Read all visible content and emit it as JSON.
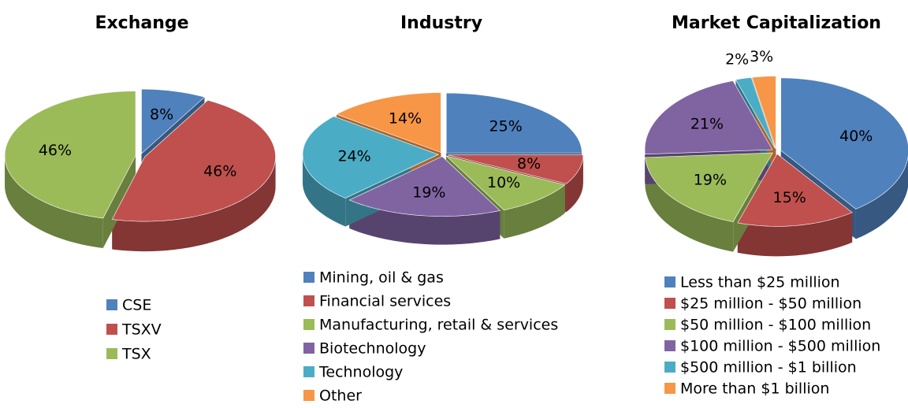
{
  "chart_data": [
    {
      "type": "pie",
      "title": "Exchange",
      "categories": [
        "CSE",
        "TSXV",
        "TSX"
      ],
      "values": [
        8,
        46,
        46
      ],
      "value_labels": [
        "8%",
        "46%",
        "46%"
      ],
      "colors": [
        "#4f81bd",
        "#c0504d",
        "#9bbb59"
      ]
    },
    {
      "type": "pie",
      "title": "Industry",
      "categories": [
        "Mining, oil & gas",
        "Financial services",
        "Manufacturing, retail & services",
        "Biotechnology",
        "Technology",
        "Other"
      ],
      "values": [
        25,
        8,
        10,
        19,
        24,
        14
      ],
      "value_labels": [
        "25%",
        "8%",
        "10%",
        "19%",
        "24%",
        "14%"
      ],
      "colors": [
        "#4f81bd",
        "#c0504d",
        "#9bbb59",
        "#8064a2",
        "#4bacc6",
        "#f79646"
      ]
    },
    {
      "type": "pie",
      "title": "Market Capitalization",
      "categories": [
        "Less than $25 million",
        "$25 million - $50 million",
        "$50 million - $100 million",
        "$100 million - $500 million",
        "$500 million - $1 billion",
        "More than $1 billion"
      ],
      "values": [
        40,
        15,
        19,
        21,
        2,
        3
      ],
      "value_labels": [
        "40%",
        "15%",
        "19%",
        "21%",
        "2%",
        "3%"
      ],
      "colors": [
        "#4f81bd",
        "#c0504d",
        "#9bbb59",
        "#8064a2",
        "#4bacc6",
        "#f79646"
      ]
    }
  ]
}
